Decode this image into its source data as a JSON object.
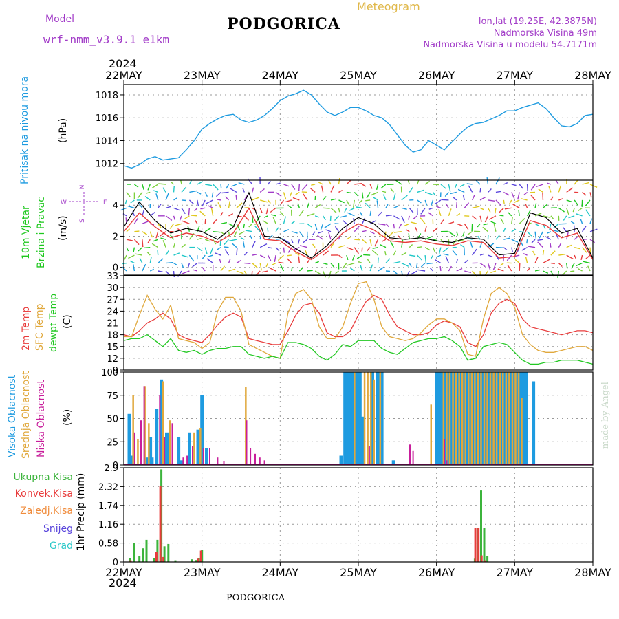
{
  "header": {
    "model_label": "Model",
    "model_name": "wrf-nmm_v3.9.1 e1km",
    "station": "PODGORICA",
    "meteogram": "Meteogram",
    "lonlat": "lon,lat (19.25E, 42.3875N)",
    "elevation": "Nadmorska Visina 49m",
    "model_elevation": "Nadmorska Visina u modelu 54.7171m"
  },
  "footer": {
    "station": "PODGORICA",
    "credit": "made by Angel"
  },
  "x_axis": {
    "year": "2024",
    "days": [
      "22MAY",
      "23MAY",
      "24MAY",
      "25MAY",
      "26MAY",
      "27MAY",
      "28MAY"
    ]
  },
  "wind_compass": {
    "n": "N",
    "w": "W",
    "e": "E",
    "s": "S"
  },
  "colors": {
    "pressure": "#1e9be0",
    "wind_label": "#1ec81e",
    "t2m": "#e83c3c",
    "sfc": "#e0a83c",
    "dew": "#22c822",
    "high_cloud": "#1e9be0",
    "mid_cloud": "#e0a83c",
    "low_cloud": "#c81e9b",
    "total_precip": "#3cb43c",
    "conv_precip": "#e83c3c",
    "frozen": "#f08c3c",
    "snow": "#5a46dc",
    "hail": "#2ac8c8"
  },
  "chart_data": [
    {
      "type": "line",
      "panel": "pressure",
      "ylabels": [
        "Pritisak na nivou mora",
        "(hPa)"
      ],
      "yticks": [
        1012,
        1014,
        1016,
        1018
      ],
      "ylim": [
        1010.6,
        1018.9
      ],
      "x": [
        0,
        0.1,
        0.2,
        0.3,
        0.4,
        0.5,
        0.6,
        0.7,
        0.8,
        0.9,
        1.0,
        1.1,
        1.2,
        1.3,
        1.4,
        1.5,
        1.6,
        1.7,
        1.8,
        1.9,
        2.0,
        2.1,
        2.2,
        2.3,
        2.4,
        2.5,
        2.6,
        2.7,
        2.8,
        2.9,
        3.0,
        3.1,
        3.2,
        3.3,
        3.4,
        3.5,
        3.6,
        3.7,
        3.8,
        3.9,
        4.0,
        4.1,
        4.2,
        4.3,
        4.4,
        4.5,
        4.6,
        4.7,
        4.8,
        4.9,
        5.0,
        5.1,
        5.2,
        5.3,
        5.4,
        5.5,
        5.6,
        5.7,
        5.8,
        5.9,
        6.0
      ],
      "series": [
        {
          "values": [
            1011.8,
            1011.6,
            1011.9,
            1012.4,
            1012.6,
            1012.3,
            1012.4,
            1012.5,
            1013.2,
            1014.0,
            1015.0,
            1015.5,
            1015.9,
            1016.2,
            1016.3,
            1015.8,
            1015.6,
            1015.8,
            1016.2,
            1016.8,
            1017.5,
            1017.9,
            1018.1,
            1018.4,
            1018.0,
            1017.2,
            1016.5,
            1016.2,
            1016.5,
            1016.9,
            1016.9,
            1016.6,
            1016.2,
            1016.0,
            1015.4,
            1014.5,
            1013.6,
            1013.0,
            1013.2,
            1014.0,
            1013.6,
            1013.2,
            1013.9,
            1014.6,
            1015.2,
            1015.5,
            1015.6,
            1015.9,
            1016.2,
            1016.6,
            1016.6,
            1016.9,
            1017.1,
            1017.3,
            1016.8,
            1016.0,
            1015.3,
            1015.2,
            1015.5,
            1016.2,
            1016.3
          ]
        }
      ]
    },
    {
      "type": "line",
      "panel": "wind",
      "ylabels": [
        "10m Vjetar",
        "Brzina i Pravac",
        "(m/s)"
      ],
      "yticks": [
        0,
        2,
        4
      ],
      "ylim": [
        -0.5,
        5.6
      ],
      "x": [
        0,
        0.2,
        0.4,
        0.6,
        0.8,
        1.0,
        1.2,
        1.4,
        1.6,
        1.8,
        2.0,
        2.2,
        2.4,
        2.6,
        2.8,
        3.0,
        3.2,
        3.4,
        3.6,
        3.8,
        4.0,
        4.2,
        4.4,
        4.6,
        4.8,
        5.0,
        5.2,
        5.4,
        5.6,
        5.8,
        6.0
      ],
      "series": [
        {
          "values": [
            2.6,
            4.2,
            3.0,
            2.2,
            2.5,
            2.3,
            1.8,
            2.6,
            4.8,
            2.0,
            1.9,
            1.2,
            0.6,
            1.4,
            2.5,
            3.2,
            2.8,
            1.9,
            1.8,
            1.9,
            1.7,
            1.6,
            1.9,
            1.8,
            0.8,
            0.9,
            3.5,
            3.2,
            2.2,
            2.5,
            0.6
          ]
        },
        {
          "values": [
            2.3,
            3.5,
            2.6,
            1.9,
            2.2,
            2.0,
            1.6,
            2.2,
            3.8,
            1.8,
            1.7,
            1.0,
            0.5,
            1.2,
            2.2,
            2.8,
            2.4,
            1.7,
            1.6,
            1.7,
            1.5,
            1.4,
            1.7,
            1.6,
            0.6,
            0.7,
            3.0,
            2.7,
            1.9,
            2.2,
            0.5
          ]
        }
      ]
    },
    {
      "type": "line",
      "panel": "temperature",
      "ylabels": [
        "2m Temp",
        "SFC Temp",
        "dewpt Temp",
        "(C)"
      ],
      "yticks": [
        9,
        12,
        15,
        18,
        21,
        24,
        27,
        30,
        33
      ],
      "ylim": [
        9,
        33
      ],
      "x": [
        0,
        0.1,
        0.2,
        0.3,
        0.4,
        0.5,
        0.6,
        0.7,
        0.8,
        0.9,
        1.0,
        1.1,
        1.2,
        1.3,
        1.4,
        1.5,
        1.6,
        1.7,
        1.8,
        1.9,
        2.0,
        2.1,
        2.2,
        2.3,
        2.4,
        2.5,
        2.6,
        2.7,
        2.8,
        2.9,
        3.0,
        3.1,
        3.2,
        3.3,
        3.4,
        3.5,
        3.6,
        3.7,
        3.8,
        3.9,
        4.0,
        4.1,
        4.2,
        4.3,
        4.4,
        4.5,
        4.6,
        4.7,
        4.8,
        4.9,
        5.0,
        5.1,
        5.2,
        5.3,
        5.4,
        5.5,
        5.6,
        5.7,
        5.8,
        5.9,
        6.0
      ],
      "series": [
        {
          "name": "2m Temp",
          "values": [
            18,
            17.5,
            19,
            21,
            22,
            23.5,
            22,
            18,
            17,
            16.5,
            16,
            18,
            20.5,
            22.5,
            23.5,
            22.5,
            17,
            16.5,
            16,
            15.5,
            15.5,
            19,
            23,
            25.5,
            26,
            23.5,
            18.5,
            17.5,
            17.5,
            19,
            23,
            26.5,
            28,
            27,
            23,
            20,
            19,
            18,
            18,
            18.5,
            20.5,
            21.5,
            21,
            20,
            16,
            15,
            18,
            23.5,
            26,
            27,
            26,
            22,
            20,
            19.5,
            19,
            18.5,
            18,
            18.5,
            19,
            19,
            18.5
          ]
        },
        {
          "name": "SFC Temp",
          "values": [
            17.5,
            17.5,
            23,
            28,
            24.5,
            22,
            25.5,
            17,
            16.5,
            16,
            14.5,
            16,
            24,
            27.5,
            27.5,
            24,
            15.5,
            14.5,
            13.5,
            12.5,
            12,
            23.5,
            28.5,
            29.5,
            27,
            20,
            17,
            17,
            20,
            26,
            31,
            31.5,
            27,
            20,
            17.5,
            17,
            16.5,
            17,
            18.5,
            20.5,
            22,
            22,
            21,
            19,
            13,
            12.5,
            22,
            28.5,
            30,
            28.5,
            25,
            18,
            15.5,
            14,
            13.5,
            13.5,
            14,
            14.5,
            15,
            15,
            14
          ]
        },
        {
          "name": "dewpt Temp",
          "values": [
            16.5,
            17,
            17,
            18,
            16.5,
            15,
            17,
            14,
            13.5,
            14,
            13,
            14,
            14.5,
            14.5,
            15,
            15,
            13,
            12.5,
            12,
            12.5,
            12,
            16,
            16,
            15.5,
            14.5,
            12.5,
            11.5,
            13,
            15.5,
            15,
            16.5,
            16.5,
            16.5,
            14.5,
            13.5,
            13,
            14.5,
            16,
            16.5,
            17,
            17,
            17.5,
            16.5,
            15,
            11.5,
            12,
            15,
            15.5,
            16,
            15.5,
            13.5,
            11.5,
            10.5,
            10.5,
            11,
            11,
            11.5,
            11.5,
            11.5,
            11,
            10.5
          ]
        }
      ]
    },
    {
      "type": "bar",
      "panel": "clouds",
      "ylabels": [
        "Visoka Oblacnost",
        "Srednja Oblacnost",
        "Niska Oblacnost",
        "(%)"
      ],
      "yticks": [
        0,
        25,
        50,
        75,
        100
      ],
      "ylim": [
        0,
        100
      ],
      "series": [
        {
          "name": "Visoka Oblacnost",
          "x": [
            0.07,
            0.1,
            0.3,
            0.34,
            0.36,
            0.42,
            0.48,
            0.55,
            0.7,
            0.74,
            0.84,
            0.95,
            1.0,
            1.06,
            2.78,
            2.83,
            2.86,
            2.9,
            2.94,
            2.98,
            3.02,
            3.06,
            3.18,
            3.25,
            3.3,
            3.45,
            4.0,
            4.03,
            4.07,
            4.11,
            4.15,
            4.19,
            4.23,
            4.27,
            4.31,
            4.35,
            4.39,
            4.43,
            4.47,
            4.51,
            4.55,
            4.59,
            4.63,
            4.67,
            4.71,
            4.75,
            4.79,
            4.83,
            4.87,
            4.91,
            4.95,
            4.99,
            5.03,
            5.07,
            5.11,
            5.15,
            5.24
          ],
          "values": [
            55,
            10,
            8,
            30,
            8,
            60,
            92,
            35,
            30,
            5,
            35,
            38,
            75,
            18,
            10,
            100,
            100,
            100,
            100,
            100,
            100,
            52,
            100,
            100,
            100,
            5,
            100,
            100,
            100,
            100,
            100,
            100,
            100,
            100,
            100,
            100,
            100,
            100,
            100,
            100,
            100,
            100,
            100,
            100,
            100,
            100,
            100,
            100,
            100,
            100,
            100,
            100,
            100,
            100,
            100,
            100,
            90
          ]
        },
        {
          "name": "Srednja Oblacnost",
          "x": [
            0.12,
            0.18,
            0.27,
            0.32,
            0.5,
            0.59,
            0.9,
            0.98,
            1.56,
            2.95,
            3.08,
            3.12,
            3.16,
            3.2,
            3.28,
            3.93,
            4.09,
            4.13,
            4.17,
            4.21,
            4.25,
            4.29,
            4.33,
            4.37,
            4.41,
            4.45,
            4.49,
            4.53,
            4.57,
            4.61,
            4.65,
            4.69,
            4.73,
            4.77,
            4.81,
            4.85,
            4.89,
            4.93,
            4.97,
            5.01,
            5.05,
            5.09
          ],
          "values": [
            75,
            28,
            85,
            45,
            90,
            48,
            35,
            40,
            84,
            100,
            100,
            100,
            100,
            92,
            100,
            65,
            100,
            100,
            100,
            100,
            100,
            100,
            100,
            100,
            100,
            100,
            100,
            100,
            100,
            100,
            100,
            100,
            100,
            100,
            100,
            100,
            100,
            100,
            100,
            100,
            100,
            72
          ]
        },
        {
          "name": "Niska Oblacnost",
          "x": [
            0.14,
            0.22,
            0.26,
            0.46,
            0.52,
            0.62,
            0.76,
            0.81,
            0.88,
            1.02,
            1.1,
            1.2,
            1.28,
            1.57,
            1.62,
            1.68,
            1.74,
            1.8,
            3.14,
            3.66,
            3.7,
            4.1,
            4.13
          ],
          "values": [
            35,
            48,
            85,
            75,
            30,
            45,
            8,
            10,
            20,
            18,
            18,
            8,
            4,
            48,
            18,
            12,
            8,
            5,
            20,
            22,
            15,
            28,
            5
          ]
        }
      ]
    },
    {
      "type": "bar",
      "panel": "precipitation",
      "ylabels": [
        "Ukupna Kisa",
        "Konvek.Kisa",
        "Zaledj.Kisa",
        "Snijeg",
        "Grad",
        "1hr Precip (mm)"
      ],
      "yticks": [
        0,
        0.58,
        1.16,
        1.74,
        2.32,
        2.9
      ],
      "ylim": [
        0,
        2.9
      ],
      "series": [
        {
          "name": "Ukupna Kisa",
          "x": [
            0.08,
            0.13,
            0.2,
            0.25,
            0.29,
            0.39,
            0.43,
            0.48,
            0.52,
            0.57,
            0.66,
            0.87,
            0.92,
            0.96,
            1.0,
            4.49,
            4.53,
            4.57,
            4.61,
            4.65
          ],
          "values": [
            0.12,
            0.58,
            0.18,
            0.42,
            0.68,
            0.12,
            0.68,
            2.85,
            0.48,
            0.55,
            0.05,
            0.08,
            0.06,
            0.12,
            0.38,
            0.1,
            1.05,
            2.2,
            1.05,
            0.18
          ]
        },
        {
          "name": "Konvek.Kisa",
          "x": [
            0.1,
            0.43,
            0.48,
            0.52,
            0.96,
            1.0,
            4.51,
            4.55,
            4.59,
            4.63
          ],
          "values": [
            0.05,
            0.3,
            2.35,
            0.15,
            0.1,
            0.35,
            1.05,
            1.05,
            0.2,
            0.05
          ]
        }
      ]
    }
  ]
}
